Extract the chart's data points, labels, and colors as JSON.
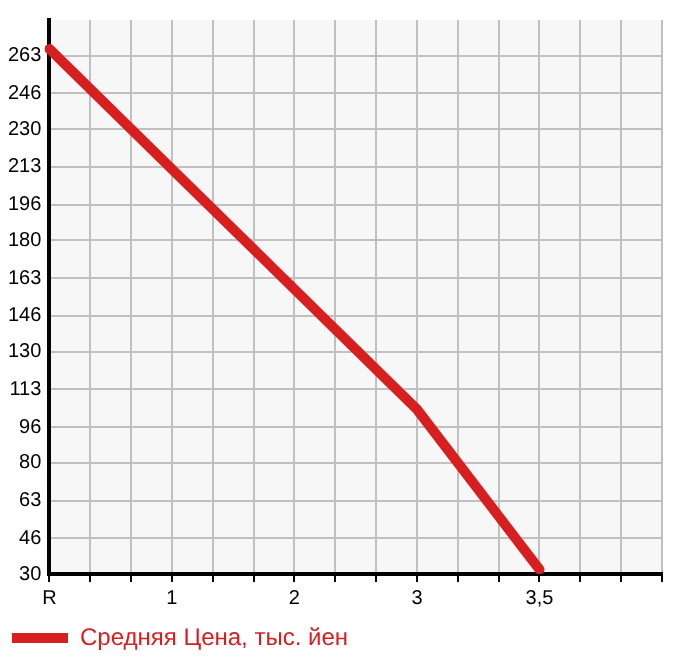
{
  "chart_data": {
    "type": "line",
    "categories": [
      "R",
      null,
      null,
      "1",
      null,
      null,
      "2",
      null,
      null,
      "3",
      null,
      null,
      "3,5",
      null,
      null,
      null
    ],
    "series": [
      {
        "name": "Средняя Цена, тыс. йен",
        "color": "#d71f1f",
        "values": [
          266,
          null,
          null,
          212,
          null,
          null,
          158,
          null,
          null,
          104,
          null,
          null,
          32,
          null,
          null,
          null
        ]
      }
    ],
    "ylim": [
      30,
      279
    ],
    "yticks": [
      30,
      46,
      63,
      80,
      96,
      113,
      130,
      146,
      163,
      180,
      196,
      213,
      230,
      246,
      263
    ],
    "grid": true,
    "legend": "bottom left",
    "marker": "none",
    "line_style": "solid"
  }
}
